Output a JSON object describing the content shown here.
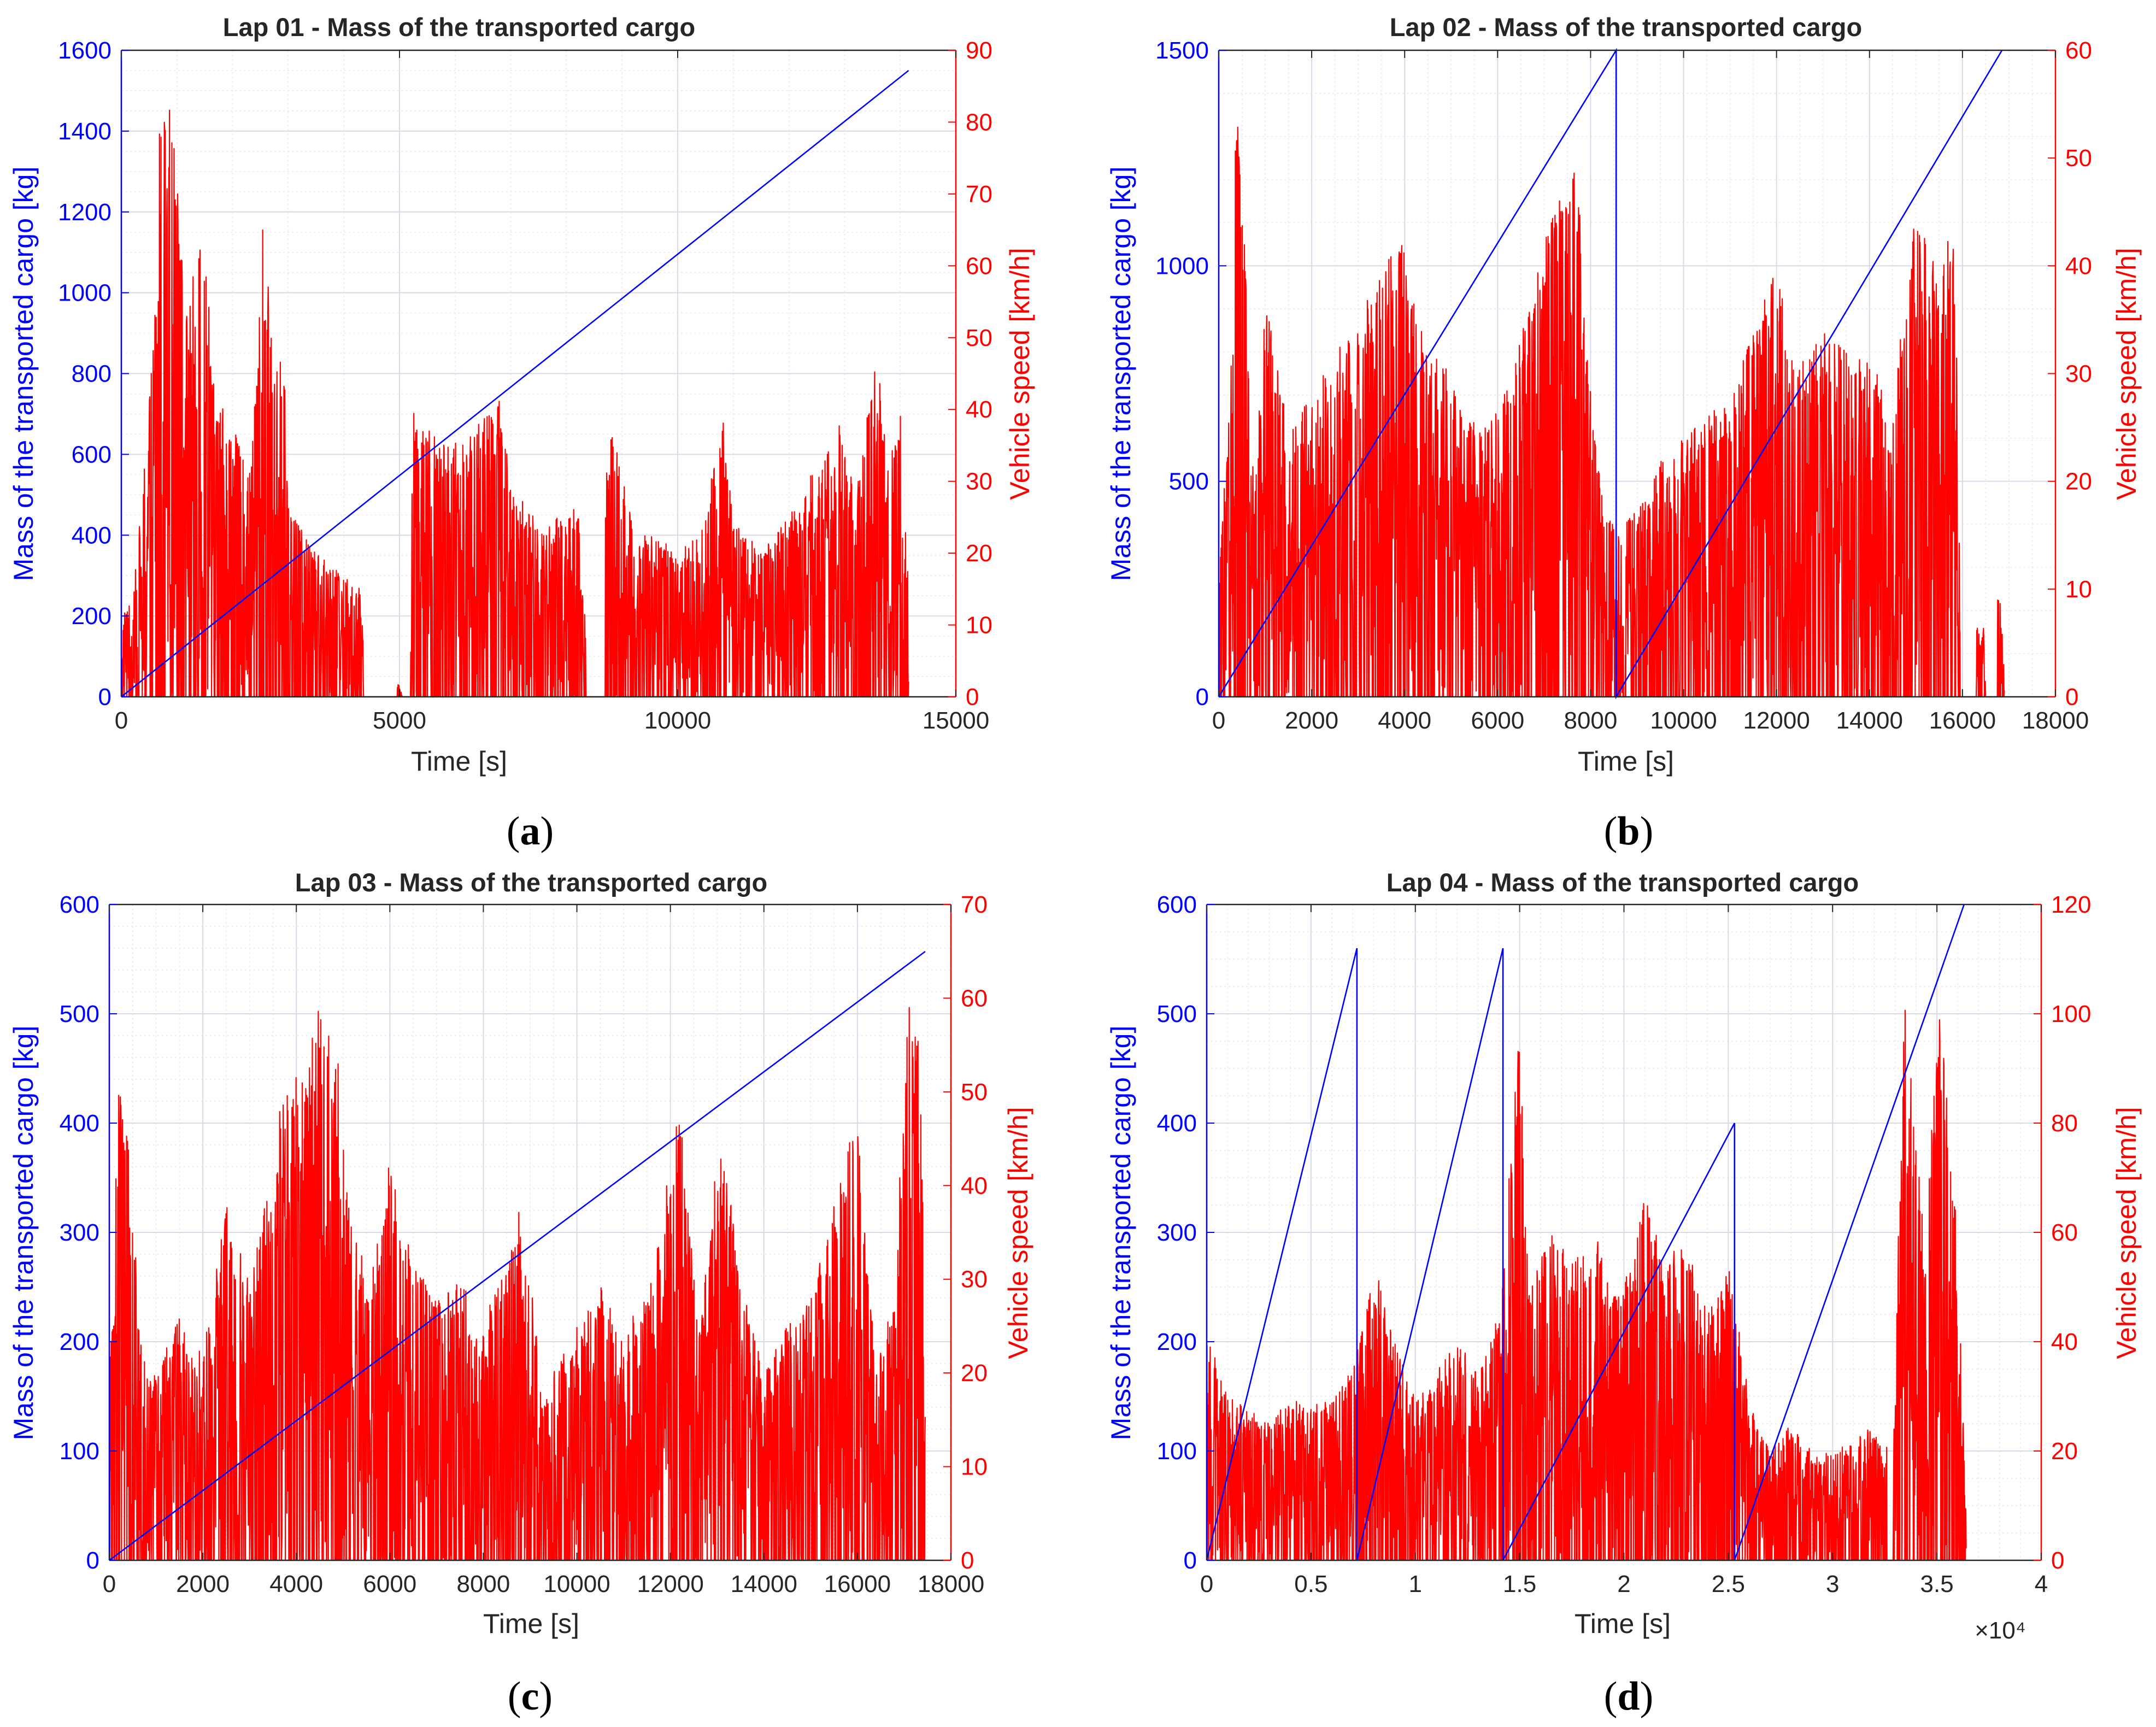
{
  "colors": {
    "mass": "#0000ff",
    "speed": "#ff0000",
    "axis": "#262626",
    "grid": "#d9d9e8",
    "minor_grid": "#ececf3"
  },
  "chart_data": [
    {
      "panel": "a",
      "caption": {
        "open": "(",
        "letter": "a",
        "close": ")"
      },
      "type": "line",
      "title": "Lap 01 - Mass of the transported cargo",
      "xlabel": "Time [s]",
      "ylabel_left": "Mass of the transported cargo [kg]",
      "ylabel_right": "Vehicle speed [km/h]",
      "xlim": [
        0,
        15000
      ],
      "xticks": [
        0,
        5000,
        10000,
        15000
      ],
      "xtick_labels": [
        "0",
        "5000",
        "10000",
        "15000"
      ],
      "x_exponent": "",
      "ylim_left": [
        0,
        1600
      ],
      "yticks_left": [
        0,
        200,
        400,
        600,
        800,
        1000,
        1200,
        1400,
        1600
      ],
      "ylim_right": [
        0,
        90
      ],
      "yticks_right": [
        0,
        10,
        20,
        30,
        40,
        50,
        60,
        70,
        80,
        90
      ],
      "minor_x": 5,
      "minor_y": 4,
      "series": [
        {
          "name": "Mass of the transported cargo",
          "axis": "left",
          "x": [
            0,
            14150
          ],
          "y": [
            0,
            1550
          ]
        },
        {
          "name": "Vehicle speed",
          "axis": "right",
          "style": "noise",
          "x_end": 14150,
          "envelope": [
            [
              0,
              12
            ],
            [
              200,
              13
            ],
            [
              400,
              30
            ],
            [
              600,
              55
            ],
            [
              700,
              85
            ],
            [
              900,
              82
            ],
            [
              1200,
              52
            ],
            [
              1450,
              70
            ],
            [
              1700,
              42
            ],
            [
              2000,
              38
            ],
            [
              2300,
              30
            ],
            [
              2550,
              68
            ],
            [
              2700,
              50
            ],
            [
              2900,
              48
            ],
            [
              3100,
              25
            ],
            [
              3500,
              20
            ],
            [
              4000,
              17
            ],
            [
              4300,
              15
            ],
            [
              4400,
              0
            ],
            [
              4950,
              3
            ],
            [
              5050,
              0
            ],
            [
              5250,
              40
            ],
            [
              5500,
              38
            ],
            [
              5800,
              35
            ],
            [
              6200,
              36
            ],
            [
              6800,
              42
            ],
            [
              7000,
              30
            ],
            [
              7600,
              23
            ],
            [
              8200,
              28
            ],
            [
              8400,
              5
            ],
            [
              8800,
              38
            ],
            [
              9200,
              25
            ],
            [
              10000,
              20
            ],
            [
              10500,
              25
            ],
            [
              10800,
              40
            ],
            [
              11000,
              25
            ],
            [
              11500,
              20
            ],
            [
              12200,
              28
            ],
            [
              12900,
              38
            ],
            [
              13200,
              28
            ],
            [
              13550,
              48
            ],
            [
              13800,
              35
            ],
            [
              14000,
              40
            ],
            [
              14150,
              17
            ]
          ],
          "quiet": [
            [
              4350,
              4950
            ],
            [
              5050,
              5200
            ],
            [
              8350,
              8700
            ]
          ]
        }
      ]
    },
    {
      "panel": "b",
      "caption": {
        "open": "(",
        "letter": "b",
        "close": ")"
      },
      "type": "line",
      "title": "Lap 02 - Mass of the transported cargo",
      "xlabel": "Time [s]",
      "ylabel_left": "Mass of the transported cargo [kg]",
      "ylabel_right": "Vehicle speed [km/h]",
      "xlim": [
        0,
        18000
      ],
      "xticks": [
        0,
        2000,
        4000,
        6000,
        8000,
        10000,
        12000,
        14000,
        16000,
        18000
      ],
      "xtick_labels": [
        "0",
        "2000",
        "4000",
        "6000",
        "8000",
        "10000",
        "12000",
        "14000",
        "16000",
        "18000"
      ],
      "x_exponent": "",
      "ylim_left": [
        0,
        1500
      ],
      "yticks_left": [
        0,
        500,
        1000,
        1500
      ],
      "ylim_right": [
        0,
        60
      ],
      "yticks_right": [
        0,
        10,
        20,
        30,
        40,
        50,
        60
      ],
      "minor_x": 4,
      "minor_y": 5,
      "series": [
        {
          "name": "Mass of the transported cargo",
          "axis": "left",
          "x": [
            0,
            8550,
            8550,
            16850
          ],
          "y": [
            0,
            1500,
            0,
            1500
          ]
        },
        {
          "name": "Vehicle speed",
          "axis": "right",
          "style": "noise",
          "x_end": 16900,
          "envelope": [
            [
              0,
              10
            ],
            [
              250,
              30
            ],
            [
              350,
              55
            ],
            [
              500,
              50
            ],
            [
              700,
              22
            ],
            [
              1000,
              37
            ],
            [
              1500,
              25
            ],
            [
              2000,
              28
            ],
            [
              2500,
              32
            ],
            [
              3000,
              35
            ],
            [
              3500,
              40
            ],
            [
              3900,
              43
            ],
            [
              4300,
              35
            ],
            [
              4800,
              32
            ],
            [
              5300,
              26
            ],
            [
              5800,
              25
            ],
            [
              6300,
              30
            ],
            [
              6800,
              40
            ],
            [
              7200,
              45
            ],
            [
              7700,
              50
            ],
            [
              7900,
              35
            ],
            [
              8200,
              20
            ],
            [
              8550,
              15
            ],
            [
              9000,
              18
            ],
            [
              9500,
              22
            ],
            [
              10000,
              24
            ],
            [
              11000,
              28
            ],
            [
              12000,
              40
            ],
            [
              12400,
              30
            ],
            [
              13000,
              34
            ],
            [
              13500,
              32
            ],
            [
              14000,
              31
            ],
            [
              14500,
              28
            ],
            [
              15000,
              47
            ],
            [
              15500,
              38
            ],
            [
              15800,
              45
            ],
            [
              16000,
              8
            ],
            [
              16400,
              6
            ],
            [
              16800,
              10
            ],
            [
              16900,
              3
            ]
          ],
          "quiet": [
            [
              15950,
              16300
            ],
            [
              16500,
              16750
            ]
          ]
        }
      ]
    },
    {
      "panel": "c",
      "caption": {
        "open": "(",
        "letter": "c",
        "close": ")"
      },
      "type": "line",
      "title": "Lap 03 - Mass of the transported cargo",
      "xlabel": "Time [s]",
      "ylabel_left": "Mass of the transported cargo [kg]",
      "ylabel_right": "Vehicle speed [km/h]",
      "xlim": [
        0,
        18000
      ],
      "xticks": [
        0,
        2000,
        4000,
        6000,
        8000,
        10000,
        12000,
        14000,
        16000,
        18000
      ],
      "xtick_labels": [
        "0",
        "2000",
        "4000",
        "6000",
        "8000",
        "10000",
        "12000",
        "14000",
        "16000",
        "18000"
      ],
      "x_exponent": "",
      "ylim_left": [
        0,
        600
      ],
      "yticks_left": [
        0,
        100,
        200,
        300,
        400,
        500,
        600
      ],
      "ylim_right": [
        0,
        70
      ],
      "yticks_right": [
        0,
        10,
        20,
        30,
        40,
        50,
        60,
        70
      ],
      "minor_x": 4,
      "minor_y": 5,
      "series": [
        {
          "name": "Mass of the transported cargo",
          "axis": "left",
          "x": [
            0,
            17450
          ],
          "y": [
            0,
            557
          ]
        },
        {
          "name": "Vehicle speed",
          "axis": "right",
          "style": "noise",
          "x_end": 17450,
          "envelope": [
            [
              0,
              20
            ],
            [
              200,
              52
            ],
            [
              400,
              45
            ],
            [
              700,
              22
            ],
            [
              1000,
              20
            ],
            [
              1500,
              26
            ],
            [
              2000,
              22
            ],
            [
              2500,
              38
            ],
            [
              3000,
              30
            ],
            [
              3500,
              42
            ],
            [
              3800,
              56
            ],
            [
              4200,
              52
            ],
            [
              4500,
              60
            ],
            [
              4900,
              55
            ],
            [
              5200,
              35
            ],
            [
              5600,
              30
            ],
            [
              6000,
              43
            ],
            [
              6500,
              32
            ],
            [
              7000,
              28
            ],
            [
              7500,
              30
            ],
            [
              8000,
              25
            ],
            [
              8800,
              38
            ],
            [
              9300,
              18
            ],
            [
              10000,
              25
            ],
            [
              10500,
              30
            ],
            [
              11000,
              25
            ],
            [
              11500,
              28
            ],
            [
              12200,
              50
            ],
            [
              12600,
              25
            ],
            [
              13100,
              48
            ],
            [
              13500,
              30
            ],
            [
              14000,
              20
            ],
            [
              14500,
              25
            ],
            [
              15000,
              28
            ],
            [
              15500,
              38
            ],
            [
              16000,
              48
            ],
            [
              16400,
              20
            ],
            [
              16800,
              30
            ],
            [
              17100,
              62
            ],
            [
              17350,
              54
            ],
            [
              17450,
              20
            ]
          ],
          "quiet": []
        }
      ]
    },
    {
      "panel": "d",
      "caption": {
        "open": "(",
        "letter": "d",
        "close": ")"
      },
      "type": "line",
      "title": "Lap 04 - Mass of the transported cargo",
      "xlabel": "Time [s]",
      "ylabel_left": "Mass of the transported cargo [kg]",
      "ylabel_right": "Vehicle speed [km/h]",
      "xlim": [
        0,
        40000
      ],
      "xticks": [
        0,
        5000,
        10000,
        15000,
        20000,
        25000,
        30000,
        35000,
        40000
      ],
      "xtick_labels": [
        "0",
        "0.5",
        "1",
        "1.5",
        "2",
        "2.5",
        "3",
        "3.5",
        "4"
      ],
      "x_exponent": "×10⁴",
      "ylim_left": [
        0,
        600
      ],
      "yticks_left": [
        0,
        100,
        200,
        300,
        400,
        500,
        600
      ],
      "ylim_right": [
        0,
        120
      ],
      "yticks_right": [
        0,
        20,
        40,
        60,
        80,
        100,
        120
      ],
      "minor_x": 5,
      "minor_y": 4,
      "series": [
        {
          "name": "Mass of the transported cargo",
          "axis": "left",
          "x": [
            0,
            7200,
            7200,
            14200,
            14200,
            25300,
            25300,
            36300
          ],
          "y": [
            0,
            560,
            0,
            560,
            0,
            400,
            0,
            600
          ]
        },
        {
          "name": "Vehicle speed",
          "axis": "right",
          "style": "noise",
          "x_end": 36400,
          "envelope": [
            [
              0,
              45
            ],
            [
              500,
              35
            ],
            [
              1000,
              30
            ],
            [
              2000,
              28
            ],
            [
              3000,
              25
            ],
            [
              4000,
              30
            ],
            [
              5000,
              28
            ],
            [
              6000,
              30
            ],
            [
              7000,
              35
            ],
            [
              8000,
              55
            ],
            [
              9000,
              40
            ],
            [
              10000,
              30
            ],
            [
              11000,
              35
            ],
            [
              12000,
              40
            ],
            [
              13000,
              35
            ],
            [
              14000,
              45
            ],
            [
              15000,
              98
            ],
            [
              15500,
              50
            ],
            [
              16500,
              60
            ],
            [
              17500,
              55
            ],
            [
              18500,
              62
            ],
            [
              19500,
              48
            ],
            [
              20500,
              55
            ],
            [
              21000,
              72
            ],
            [
              21500,
              60
            ],
            [
              22000,
              55
            ],
            [
              23000,
              60
            ],
            [
              24000,
              45
            ],
            [
              25000,
              55
            ],
            [
              26000,
              30
            ],
            [
              27000,
              20
            ],
            [
              28000,
              25
            ],
            [
              29000,
              20
            ],
            [
              30000,
              20
            ],
            [
              31000,
              22
            ],
            [
              32000,
              25
            ],
            [
              32500,
              18
            ],
            [
              33000,
              40
            ],
            [
              33500,
              108
            ],
            [
              34000,
              75
            ],
            [
              34500,
              60
            ],
            [
              35000,
              105
            ],
            [
              35500,
              85
            ],
            [
              36000,
              60
            ],
            [
              36400,
              8
            ]
          ],
          "quiet": [
            [
              32600,
              32900
            ]
          ]
        }
      ]
    }
  ]
}
